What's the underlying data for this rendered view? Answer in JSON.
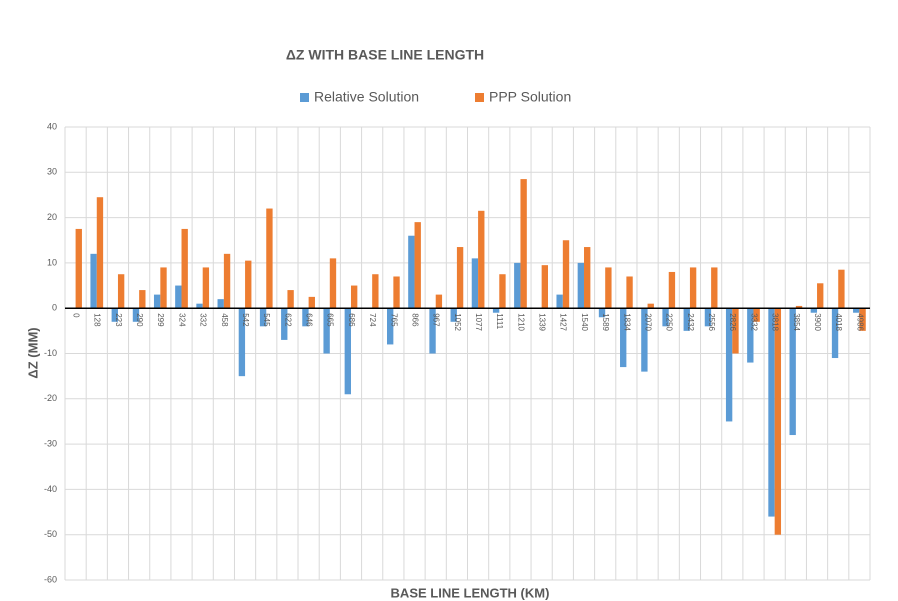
{
  "chart_data": {
    "type": "bar",
    "title": "ΔZ WITH BASE LINE LENGTH",
    "x_label": "BASE LINE LENGTH (KM)",
    "y_label": "ΔZ (MM)",
    "categories": [
      "0",
      "128",
      "223",
      "290",
      "299",
      "324",
      "332",
      "458",
      "542",
      "545",
      "622",
      "646",
      "665",
      "686",
      "724",
      "765",
      "866",
      "967",
      "1052",
      "1077",
      "1111",
      "1210",
      "1339",
      "1427",
      "1540",
      "1589",
      "1834",
      "2070",
      "2250",
      "2432",
      "2556",
      "2826",
      "3332",
      "3818",
      "3854",
      "3900",
      "4018",
      "4986"
    ],
    "series": [
      {
        "name": "Relative Solution",
        "color": "#5b9bd5",
        "values": [
          0,
          12,
          -3,
          -3,
          3,
          5,
          1,
          2,
          -15,
          -4,
          -7,
          -4,
          -10,
          -19,
          0,
          -8,
          16,
          -10,
          -3,
          11,
          -1,
          10,
          0,
          3,
          10,
          -2,
          -13,
          -14,
          -4,
          -5,
          -4,
          -25,
          -12,
          -46,
          -28,
          -1,
          -11,
          -1
        ]
      },
      {
        "name": "PPP Solution",
        "color": "#ed7d31",
        "values": [
          17.5,
          24.5,
          7.5,
          4,
          9,
          17.5,
          9,
          12,
          10.5,
          22,
          4,
          2.5,
          11,
          5,
          7.5,
          7,
          19,
          3,
          13.5,
          21.5,
          7.5,
          28.5,
          9.5,
          15,
          13.5,
          9,
          7,
          1,
          8,
          9,
          9,
          -10,
          -3,
          -50,
          0.5,
          5.5,
          8.5,
          -5
        ]
      }
    ],
    "ylim": [
      -60,
      40
    ],
    "yticks": [
      -60,
      -50,
      -40,
      -30,
      -20,
      -10,
      0,
      10,
      20,
      30,
      40
    ],
    "grid": true,
    "legend": "top"
  }
}
